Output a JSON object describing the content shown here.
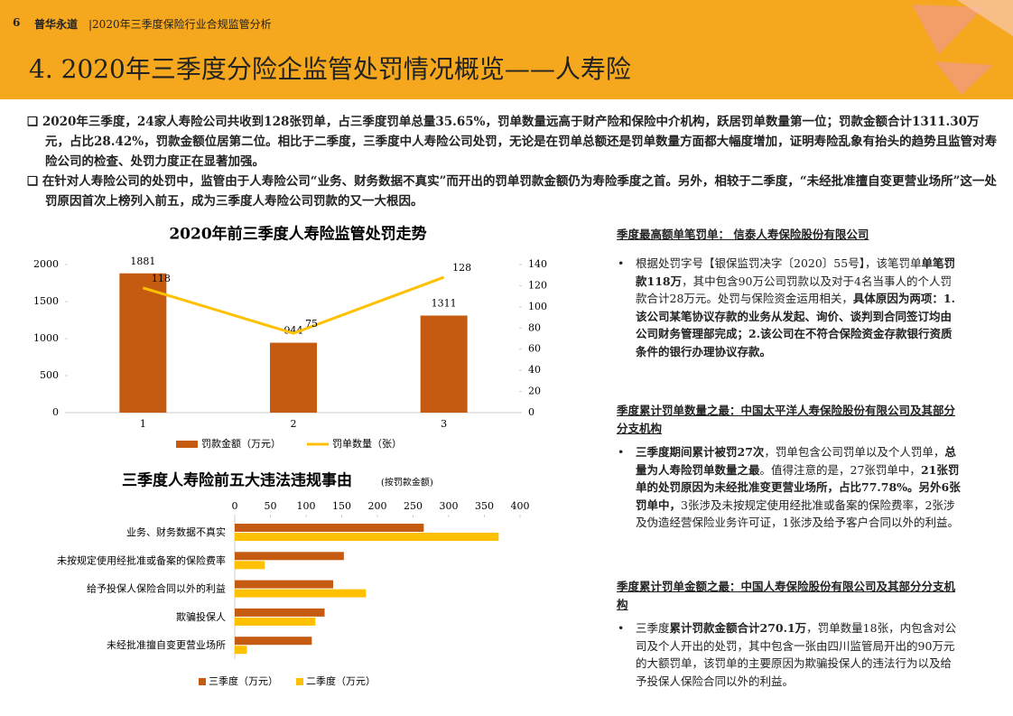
{
  "header": {
    "page_number": "6",
    "brand": "普华永道",
    "subtitle": "|2020年三季度保险行业合规监管分析"
  },
  "title": "4. 2020年三季度分险企监管处罚情况概览——人寿险",
  "bullets": [
    "2020年三季度，24家人寿险公司共收到128张罚单，占三季度罚单总量35.65%，罚单数量远高于财产险和保险中介机构，跃居罚单数量第一位；罚款金额合计1311.30万元，占比28.42%，罚款金额位居第二位。相比于二季度，三季度中人寿险公司处罚，无论是在罚单总额还是罚单数量方面都大幅度增加，证明寿险乱象有抬头的趋势且监管对寿险公司的检查、处罚力度正在显著加强。",
    "在针对人寿险公司的处罚中，监管由于人寿险公司“业务、财务数据不真实”而开出的罚单罚款金额仍为寿险季度之首。另外，相较于二季度，“未经批准擅自变更营业场所”这一处罚原因首次上榜列入前五，成为三季度人寿险公司罚款的又一大根因。"
  ],
  "side_sections": [
    {
      "heading": "季度最高额单笔罚单： 信泰人寿保险股份有限公司",
      "runs": [
        {
          "text": "根据处罚字号【银保监罚决字〔2020〕55号】，该笔罚单",
          "bold": false
        },
        {
          "text": "单笔罚款118万",
          "bold": true
        },
        {
          "text": "，其中包含90万公司罚款以及对于4名当事人的个人罚款合计28万元。处罚与保险资金运用相关，",
          "bold": false
        },
        {
          "text": "具体原因为两项：1.该公司某笔协议存款的业务从发起、询价、谈判到合同签订均由公司财务管理部完成；2.该公司在不符合保险资金存款银行资质条件的银行办理协议存款。",
          "bold": true
        }
      ]
    },
    {
      "heading": "季度累计罚单数量之最：中国太平洋人寿保险股份有限公司及其部分分支机构",
      "runs": [
        {
          "text": "三季度期间累计被罚27次",
          "bold": true
        },
        {
          "text": "，罚单包含公司罚单以及个人罚单，",
          "bold": false
        },
        {
          "text": "总量为人寿险罚单数量之最",
          "bold": true
        },
        {
          "text": "。值得注意的是，27张罚单中，",
          "bold": false
        },
        {
          "text": "21张罚单的处罚原因为未经批准变更营业场所，占比77.78%。另外6张罚单中，",
          "bold": true
        },
        {
          "text": "3张涉及未按规定使用经批准或备案的保险费率，2张涉及伪造经营保险业务许可证，1张涉及给予客户合同以外的利益。",
          "bold": false
        }
      ]
    },
    {
      "heading": "季度累计罚单金额之最：中国人寿保险股份有限公司及其部分分支机构",
      "runs": [
        {
          "text": "三季度",
          "bold": false
        },
        {
          "text": "累计罚款金额合计270.1万",
          "bold": true
        },
        {
          "text": "，罚单数量18张，内包含对公司及个人开出的处罚，其中包含一张由四川监管局开出的90万元的大额罚单，该罚单的主要原因为欺骗投保人的违法行为以及给予投保人保险合同以外的利益。",
          "bold": false
        }
      ]
    }
  ],
  "chart_data": [
    {
      "type": "bar",
      "title": "2020年前三季度人寿险监管处罚走势",
      "categories": [
        "1",
        "2",
        "3"
      ],
      "series": [
        {
          "name": "罚款金额（万元）",
          "color": "#c55a11",
          "values": [
            1881,
            944,
            1311
          ]
        },
        {
          "name": "罚单数量（张）",
          "color": "#ffc000",
          "values": [
            118,
            75,
            128
          ],
          "axis": "y2",
          "type": "line"
        }
      ],
      "ylim": [
        0,
        2000
      ],
      "yticks": [
        0,
        500,
        1000,
        1500,
        2000
      ],
      "y2lim": [
        0,
        140
      ],
      "y2ticks": [
        0,
        20,
        40,
        60,
        80,
        100,
        120,
        140
      ],
      "grid": false,
      "legend": "bottom"
    },
    {
      "type": "barh",
      "title": "三季度人寿险前五大违法违规事由",
      "subtitle": "(按罚款金额)",
      "categories": [
        "业务、财务数据不真实",
        "未按规定使用经批准或备案的保险费率",
        "给予投保人保险合同以外的利益",
        "欺骗投保人",
        "未经批准擅自变更营业场所"
      ],
      "series": [
        {
          "name": "三季度（万元）",
          "color": "#c55a11",
          "values": [
            265,
            153,
            138,
            126,
            108
          ]
        },
        {
          "name": "二季度（万元）",
          "color": "#ffc000",
          "values": [
            370,
            42,
            184,
            113,
            17
          ]
        }
      ],
      "xlim": [
        0,
        400
      ],
      "xticks": [
        0,
        50,
        100,
        150,
        200,
        250,
        300,
        350,
        400
      ],
      "grid": false,
      "legend": "bottom"
    }
  ]
}
